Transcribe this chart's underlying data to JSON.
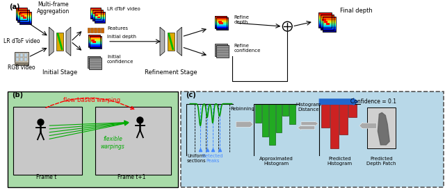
{
  "fig_width": 6.4,
  "fig_height": 2.74,
  "dpi": 100,
  "bg_color": "#ffffff",
  "panel_a_label": "(a)",
  "panel_b_label": "(b)",
  "panel_c_label": "(c)",
  "lr_dtof": "LR dToF video",
  "rgb_video": "RGB video",
  "multi_frame": "Multi-frame\nAggregation",
  "lr_dtof2": "LR dToF video",
  "features": "Features",
  "initial_depth": "Initial depth",
  "initial_conf": "Initial\nconfidence",
  "initial_stage": "Initial Stage",
  "refinement_stage": "Refinement Stage",
  "refine_depth": "Refine\ndepth",
  "refine_conf": "Refine\nconfidence",
  "final_depth": "Final depth",
  "b_title": "flow based warping",
  "b_frame_t": "Frame t",
  "b_frame_t1": "Frame t+1",
  "b_flexible": "flexible\nwarpings",
  "c_rebinning": "Rebinning",
  "c_hist_dist": "Histogram\nDistance",
  "c_confidence": "Confidence = 0.1",
  "c_uniform": "Uniform\nsections",
  "c_detected": "Detected\nPeaks",
  "c_approx_hist": "Approximated\nHistogram",
  "c_pred_hist": "Predicted\nHistogram",
  "c_pred_depth": "Predicted\nDepth Patch",
  "green_bg": "#a8dba8",
  "light_blue_bg": "#b8d8e8",
  "green_bar": "#22aa22",
  "red_bar": "#cc2222",
  "blue_peak": "#4488ff",
  "blue_arrow": "#2266cc",
  "gray_arrow": "#aaaaaa",
  "orange_feat": "#cc6600",
  "gray_nn": "#b0b0b0",
  "yellow_mid": "#ddaa00",
  "green_diag": "#00bb00"
}
